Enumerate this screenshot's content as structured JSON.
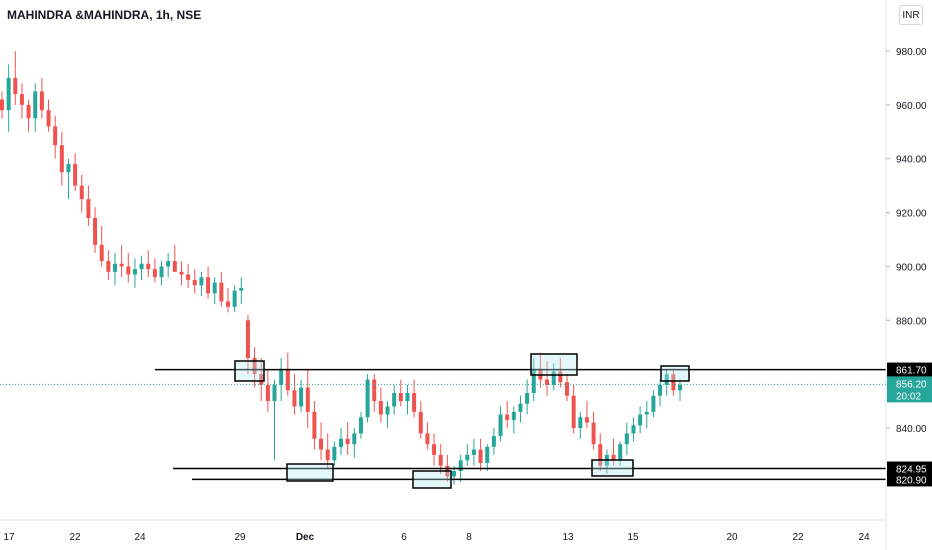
{
  "header": {
    "symbol_title": "MAHINDRA &MAHINDRA, 1h, NSE",
    "currency": "INR"
  },
  "chart_data": {
    "type": "candlestick",
    "ylim": [
      808,
      990
    ],
    "y_ticks": [
      "980.00",
      "960.00",
      "940.00",
      "920.00",
      "900.00",
      "880.00",
      "840.00"
    ],
    "x_ticks": [
      "17",
      "22",
      "24",
      "29",
      "Dec",
      "6",
      "8",
      "13",
      "15",
      "20",
      "22",
      "24"
    ],
    "current_price": "856.20",
    "countdown": "20:02",
    "levels": [
      "861.70",
      "824.95",
      "820.90"
    ],
    "colors": {
      "up": "#26a69a",
      "down": "#ef5350",
      "line": "#000000",
      "label_bg": "#000000",
      "price_bg": "#26a69a"
    },
    "candles": [
      [
        962,
        965,
        955,
        958
      ],
      [
        958,
        975,
        950,
        970
      ],
      [
        970,
        980,
        960,
        964
      ],
      [
        964,
        968,
        955,
        960
      ],
      [
        960,
        962,
        950,
        955
      ],
      [
        955,
        968,
        950,
        965
      ],
      [
        965,
        970,
        955,
        958
      ],
      [
        958,
        962,
        950,
        952
      ],
      [
        952,
        956,
        940,
        945
      ],
      [
        945,
        950,
        930,
        935
      ],
      [
        935,
        940,
        925,
        938
      ],
      [
        938,
        942,
        928,
        930
      ],
      [
        930,
        934,
        920,
        925
      ],
      [
        925,
        930,
        915,
        918
      ],
      [
        918,
        922,
        905,
        908
      ],
      [
        908,
        915,
        900,
        902
      ],
      [
        902,
        906,
        895,
        898
      ],
      [
        898,
        905,
        893,
        901
      ],
      [
        901,
        908,
        896,
        900
      ],
      [
        900,
        905,
        894,
        897
      ],
      [
        897,
        903,
        892,
        899
      ],
      [
        899,
        904,
        895,
        901
      ],
      [
        901,
        906,
        896,
        899
      ],
      [
        899,
        903,
        894,
        896
      ],
      [
        896,
        902,
        893,
        900
      ],
      [
        900,
        905,
        896,
        902
      ],
      [
        902,
        908,
        898,
        898
      ],
      [
        898,
        902,
        893,
        897
      ],
      [
        897,
        901,
        892,
        895
      ],
      [
        895,
        899,
        890,
        893
      ],
      [
        893,
        898,
        889,
        896
      ],
      [
        896,
        900,
        888,
        890
      ],
      [
        890,
        896,
        886,
        894
      ],
      [
        894,
        898,
        885,
        887
      ],
      [
        887,
        892,
        883,
        885
      ],
      [
        885,
        893,
        883,
        891
      ],
      [
        891,
        896,
        886,
        892
      ],
      [
        880,
        882,
        860,
        866
      ],
      [
        866,
        870,
        855,
        860
      ],
      [
        860,
        866,
        850,
        856
      ],
      [
        856,
        862,
        846,
        850
      ],
      [
        850,
        858,
        828,
        856
      ],
      [
        856,
        866,
        850,
        862
      ],
      [
        862,
        868,
        852,
        854
      ],
      [
        854,
        860,
        845,
        848
      ],
      [
        848,
        858,
        846,
        855
      ],
      [
        855,
        862,
        840,
        846
      ],
      [
        846,
        850,
        832,
        836
      ],
      [
        836,
        842,
        828,
        832
      ],
      [
        832,
        838,
        825,
        828
      ],
      [
        828,
        835,
        826,
        833
      ],
      [
        833,
        840,
        830,
        836
      ],
      [
        836,
        842,
        830,
        834
      ],
      [
        834,
        840,
        829,
        838
      ],
      [
        838,
        846,
        836,
        844
      ],
      [
        844,
        860,
        842,
        858
      ],
      [
        858,
        860,
        846,
        850
      ],
      [
        850,
        855,
        842,
        845
      ],
      [
        845,
        850,
        840,
        848
      ],
      [
        848,
        856,
        845,
        853
      ],
      [
        853,
        858,
        848,
        850
      ],
      [
        850,
        856,
        845,
        853
      ],
      [
        853,
        858,
        844,
        846
      ],
      [
        846,
        850,
        836,
        838
      ],
      [
        838,
        842,
        832,
        834
      ],
      [
        834,
        838,
        826,
        830
      ],
      [
        830,
        834,
        823,
        826
      ],
      [
        826,
        830,
        820,
        822
      ],
      [
        822,
        826,
        819,
        824
      ],
      [
        824,
        830,
        820,
        828
      ],
      [
        828,
        834,
        826,
        830
      ],
      [
        830,
        836,
        826,
        832
      ],
      [
        832,
        836,
        824,
        827
      ],
      [
        827,
        834,
        824,
        833
      ],
      [
        833,
        840,
        830,
        837
      ],
      [
        837,
        848,
        835,
        845
      ],
      [
        845,
        850,
        840,
        843
      ],
      [
        843,
        848,
        838,
        846
      ],
      [
        846,
        852,
        842,
        849
      ],
      [
        849,
        858,
        845,
        853
      ],
      [
        853,
        866,
        850,
        862
      ],
      [
        862,
        868,
        855,
        858
      ],
      [
        858,
        865,
        852,
        856
      ],
      [
        856,
        864,
        854,
        861
      ],
      [
        861,
        866,
        855,
        857
      ],
      [
        857,
        860,
        850,
        852
      ],
      [
        852,
        856,
        838,
        840
      ],
      [
        840,
        846,
        836,
        844
      ],
      [
        844,
        850,
        840,
        842
      ],
      [
        842,
        846,
        832,
        834
      ],
      [
        834,
        838,
        824,
        826
      ],
      [
        826,
        832,
        823,
        830
      ],
      [
        830,
        836,
        826,
        828
      ],
      [
        828,
        835,
        826,
        834
      ],
      [
        834,
        842,
        830,
        838
      ],
      [
        838,
        844,
        835,
        841
      ],
      [
        841,
        848,
        838,
        845
      ],
      [
        845,
        850,
        840,
        846
      ],
      [
        846,
        854,
        844,
        852
      ],
      [
        852,
        858,
        848,
        856
      ],
      [
        856,
        862,
        852,
        860
      ],
      [
        860,
        862,
        852,
        854
      ],
      [
        854,
        858,
        850,
        856
      ]
    ]
  }
}
